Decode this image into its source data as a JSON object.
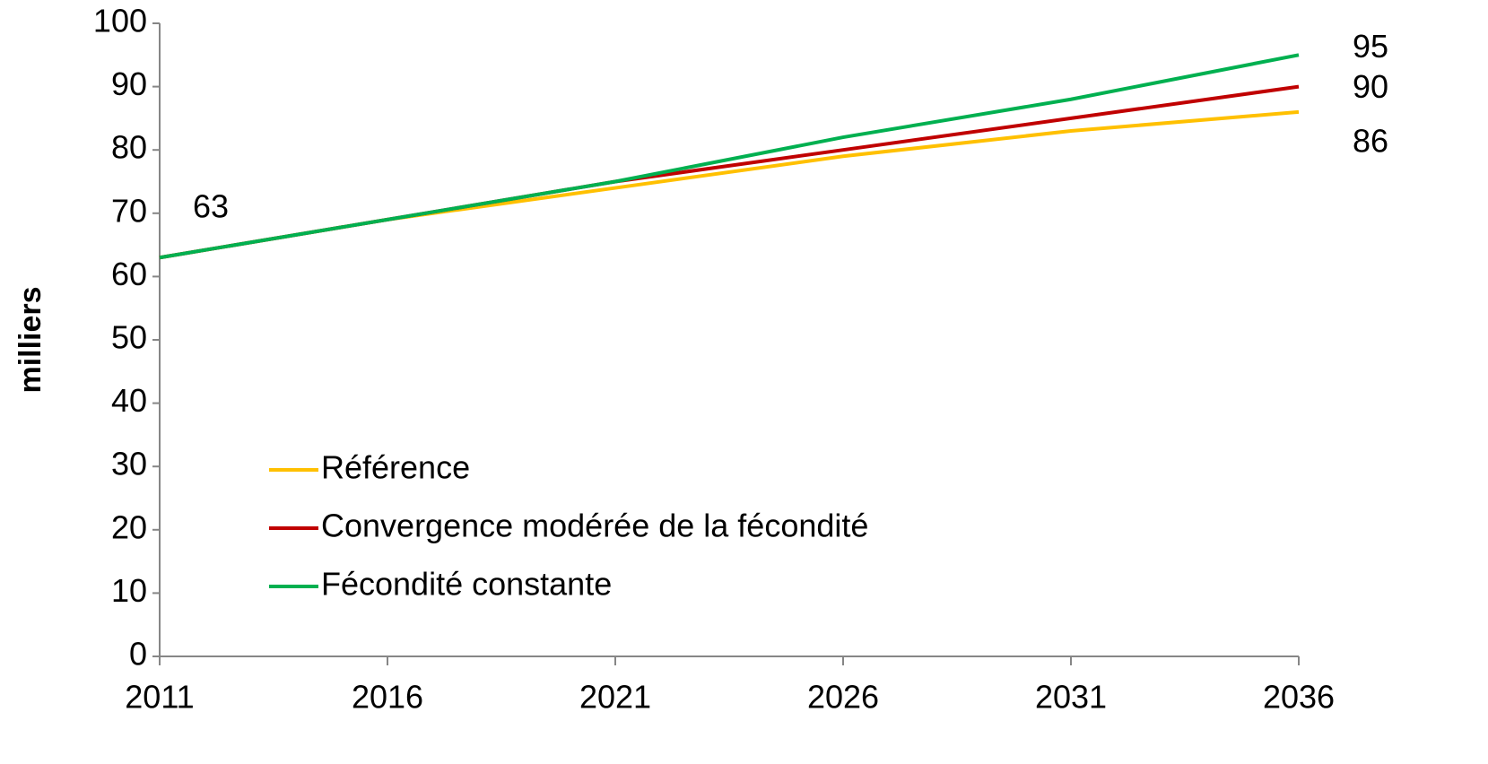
{
  "chart_data": {
    "type": "line",
    "y_label": "milliers",
    "x": [
      2011,
      2016,
      2021,
      2026,
      2031,
      2036
    ],
    "xlim": [
      2011,
      2036
    ],
    "xticks": [
      2011,
      2016,
      2021,
      2026,
      2031,
      2036
    ],
    "ylim": [
      0,
      100
    ],
    "yticks": [
      0,
      10,
      20,
      30,
      40,
      50,
      60,
      70,
      80,
      90,
      100
    ],
    "grid": false,
    "legend": "lower left",
    "series": [
      {
        "name": "Référence",
        "color": "#FFC000",
        "values": [
          63,
          69,
          74,
          79,
          83,
          86
        ]
      },
      {
        "name": "Convergence modérée de la fécondité",
        "color": "#C00000",
        "values": [
          63,
          69,
          75,
          80,
          85,
          90
        ]
      },
      {
        "name": "Fécondité constante",
        "color": "#00B050",
        "values": [
          63,
          69,
          75,
          82,
          88,
          95
        ]
      }
    ]
  }
}
